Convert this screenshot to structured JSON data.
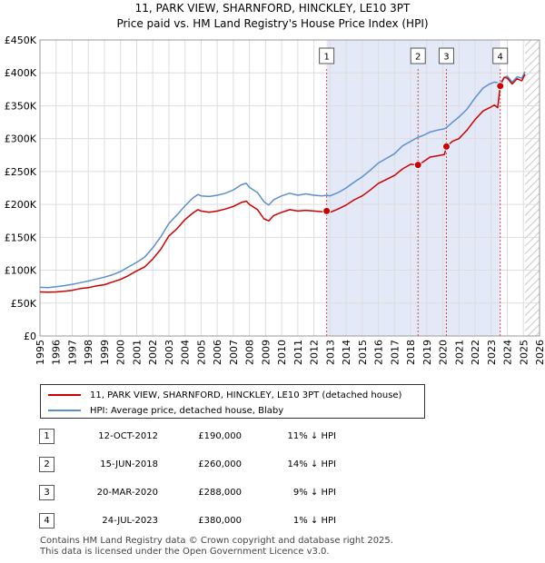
{
  "colors": {
    "property": "#cc0000",
    "hpi": "#5b8fd0",
    "shade": "#e4e9f8",
    "grid": "#dddddd"
  },
  "chart_data": {
    "type": "line",
    "title": "11, PARK VIEW, SHARNFORD, HINCKLEY, LE10 3PT",
    "subtitle": "Price paid vs. HM Land Registry's House Price Index (HPI)",
    "xlim": [
      1995,
      2026
    ],
    "ylim": [
      0,
      450000
    ],
    "x_ticks": [
      "1995",
      "1996",
      "1997",
      "1998",
      "1999",
      "2000",
      "2001",
      "2002",
      "2003",
      "2004",
      "2005",
      "2006",
      "2007",
      "2008",
      "2009",
      "2010",
      "2011",
      "2012",
      "2013",
      "2014",
      "2015",
      "2016",
      "2017",
      "2018",
      "2019",
      "2020",
      "2021",
      "2022",
      "2023",
      "2024",
      "2025",
      "2026"
    ],
    "y_ticks": [
      {
        "value": 0,
        "label": "£0"
      },
      {
        "value": 50000,
        "label": "£50K"
      },
      {
        "value": 100000,
        "label": "£100K"
      },
      {
        "value": 150000,
        "label": "£150K"
      },
      {
        "value": 200000,
        "label": "£200K"
      },
      {
        "value": 250000,
        "label": "£250K"
      },
      {
        "value": 300000,
        "label": "£300K"
      },
      {
        "value": 350000,
        "label": "£350K"
      },
      {
        "value": 400000,
        "label": "£400K"
      },
      {
        "value": 450000,
        "label": "£450K"
      }
    ],
    "shaded_range": [
      2012.79,
      2023.56
    ],
    "forecast_from": 2025.1,
    "series": [
      {
        "name": "11, PARK VIEW, SHARNFORD, HINCKLEY, LE10 3PT (detached house)",
        "color": "#cc0000",
        "points": [
          [
            1995.0,
            67000
          ],
          [
            1995.5,
            66500
          ],
          [
            1996.0,
            67000
          ],
          [
            1996.5,
            68000
          ],
          [
            1997.0,
            69500
          ],
          [
            1997.5,
            72000
          ],
          [
            1998.0,
            73500
          ],
          [
            1998.5,
            76000
          ],
          [
            1999.0,
            78000
          ],
          [
            1999.5,
            82000
          ],
          [
            2000.0,
            86000
          ],
          [
            2000.5,
            92000
          ],
          [
            2001.0,
            99000
          ],
          [
            2001.5,
            105000
          ],
          [
            2002.0,
            117000
          ],
          [
            2002.5,
            132000
          ],
          [
            2003.0,
            152000
          ],
          [
            2003.5,
            163000
          ],
          [
            2004.0,
            177000
          ],
          [
            2004.5,
            187000
          ],
          [
            2004.8,
            192000
          ],
          [
            2005.0,
            190000
          ],
          [
            2005.5,
            188000
          ],
          [
            2006.0,
            190000
          ],
          [
            2006.5,
            193000
          ],
          [
            2007.0,
            197000
          ],
          [
            2007.5,
            203000
          ],
          [
            2007.8,
            205000
          ],
          [
            2008.0,
            200000
          ],
          [
            2008.5,
            192000
          ],
          [
            2008.9,
            178000
          ],
          [
            2009.2,
            175000
          ],
          [
            2009.5,
            183000
          ],
          [
            2010.0,
            188000
          ],
          [
            2010.5,
            192000
          ],
          [
            2011.0,
            190000
          ],
          [
            2011.5,
            191000
          ],
          [
            2012.0,
            190000
          ],
          [
            2012.5,
            189000
          ],
          [
            2012.79,
            190000
          ],
          [
            2013.0,
            188000
          ],
          [
            2013.5,
            193000
          ],
          [
            2014.0,
            199000
          ],
          [
            2014.5,
            207000
          ],
          [
            2015.0,
            213000
          ],
          [
            2015.5,
            222000
          ],
          [
            2016.0,
            232000
          ],
          [
            2016.5,
            238000
          ],
          [
            2017.0,
            244000
          ],
          [
            2017.5,
            254000
          ],
          [
            2018.0,
            261000
          ],
          [
            2018.46,
            260000
          ],
          [
            2018.8,
            265000
          ],
          [
            2019.2,
            272000
          ],
          [
            2019.7,
            274000
          ],
          [
            2020.1,
            276000
          ],
          [
            2020.22,
            288000
          ],
          [
            2020.6,
            296000
          ],
          [
            2021.0,
            300000
          ],
          [
            2021.5,
            313000
          ],
          [
            2022.0,
            329000
          ],
          [
            2022.5,
            342000
          ],
          [
            2022.9,
            347000
          ],
          [
            2023.2,
            351000
          ],
          [
            2023.4,
            347000
          ],
          [
            2023.56,
            380000
          ],
          [
            2023.8,
            393000
          ],
          [
            2024.0,
            392000
          ],
          [
            2024.3,
            383000
          ],
          [
            2024.6,
            391000
          ],
          [
            2024.9,
            388000
          ],
          [
            2025.1,
            398000
          ]
        ]
      },
      {
        "name": "HPI: Average price, detached house, Blaby",
        "color": "#5b8fd0",
        "points": [
          [
            1995.0,
            74000
          ],
          [
            1995.5,
            73500
          ],
          [
            1996.0,
            75000
          ],
          [
            1996.5,
            76500
          ],
          [
            1997.0,
            78500
          ],
          [
            1997.5,
            81000
          ],
          [
            1998.0,
            83500
          ],
          [
            1998.5,
            86500
          ],
          [
            1999.0,
            89500
          ],
          [
            1999.5,
            93000
          ],
          [
            2000.0,
            98000
          ],
          [
            2000.5,
            105000
          ],
          [
            2001.0,
            112000
          ],
          [
            2001.5,
            120000
          ],
          [
            2002.0,
            134000
          ],
          [
            2002.5,
            151000
          ],
          [
            2003.0,
            171000
          ],
          [
            2003.5,
            184000
          ],
          [
            2004.0,
            198000
          ],
          [
            2004.5,
            210000
          ],
          [
            2004.8,
            215000
          ],
          [
            2005.0,
            213000
          ],
          [
            2005.5,
            212000
          ],
          [
            2006.0,
            214000
          ],
          [
            2006.5,
            217000
          ],
          [
            2007.0,
            222000
          ],
          [
            2007.5,
            230000
          ],
          [
            2007.8,
            232000
          ],
          [
            2008.0,
            226000
          ],
          [
            2008.5,
            218000
          ],
          [
            2008.9,
            204000
          ],
          [
            2009.2,
            199000
          ],
          [
            2009.5,
            207000
          ],
          [
            2010.0,
            213000
          ],
          [
            2010.5,
            217000
          ],
          [
            2011.0,
            214000
          ],
          [
            2011.5,
            216000
          ],
          [
            2012.0,
            214000
          ],
          [
            2012.5,
            213000
          ],
          [
            2012.79,
            214000
          ],
          [
            2013.0,
            213000
          ],
          [
            2013.5,
            218000
          ],
          [
            2014.0,
            225000
          ],
          [
            2014.5,
            234000
          ],
          [
            2015.0,
            242000
          ],
          [
            2015.5,
            252000
          ],
          [
            2016.0,
            263000
          ],
          [
            2016.5,
            270000
          ],
          [
            2017.0,
            277000
          ],
          [
            2017.5,
            289000
          ],
          [
            2018.0,
            296000
          ],
          [
            2018.46,
            302000
          ],
          [
            2018.8,
            305000
          ],
          [
            2019.2,
            310000
          ],
          [
            2019.7,
            313000
          ],
          [
            2020.1,
            315000
          ],
          [
            2020.22,
            317000
          ],
          [
            2020.6,
            325000
          ],
          [
            2021.0,
            333000
          ],
          [
            2021.5,
            345000
          ],
          [
            2022.0,
            362000
          ],
          [
            2022.5,
            377000
          ],
          [
            2022.9,
            383000
          ],
          [
            2023.2,
            386000
          ],
          [
            2023.4,
            385000
          ],
          [
            2023.56,
            384000
          ],
          [
            2023.8,
            393000
          ],
          [
            2024.0,
            395000
          ],
          [
            2024.3,
            386000
          ],
          [
            2024.6,
            394000
          ],
          [
            2024.9,
            392000
          ],
          [
            2025.1,
            402000
          ]
        ]
      }
    ],
    "sales": [
      {
        "label": "1",
        "x": 2012.79,
        "price": 190000
      },
      {
        "label": "2",
        "x": 2018.46,
        "price": 260000
      },
      {
        "label": "3",
        "x": 2020.22,
        "price": 288000
      },
      {
        "label": "4",
        "x": 2023.56,
        "price": 380000
      }
    ]
  },
  "legend": {
    "property_label": "11, PARK VIEW, SHARNFORD, HINCKLEY, LE10 3PT (detached house)",
    "hpi_label": "HPI: Average price, detached house, Blaby"
  },
  "transactions": [
    {
      "num": "1",
      "date": "12-OCT-2012",
      "price": "£190,000",
      "hpi": "11% ↓ HPI"
    },
    {
      "num": "2",
      "date": "15-JUN-2018",
      "price": "£260,000",
      "hpi": "14% ↓ HPI"
    },
    {
      "num": "3",
      "date": "20-MAR-2020",
      "price": "£288,000",
      "hpi": "9% ↓ HPI"
    },
    {
      "num": "4",
      "date": "24-JUL-2023",
      "price": "£380,000",
      "hpi": "1% ↓ HPI"
    }
  ],
  "footer": {
    "line1": "Contains HM Land Registry data © Crown copyright and database right 2025.",
    "line2": "This data is licensed under the Open Government Licence v3.0."
  }
}
